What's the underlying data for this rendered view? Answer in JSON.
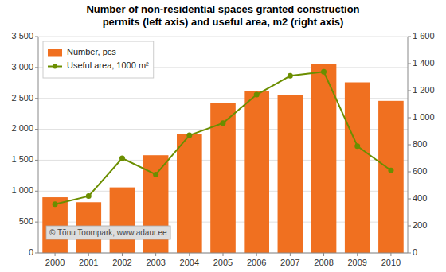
{
  "chart_data": {
    "type": "bar",
    "title": "Number of non-residential spaces granted construction\npermits (left axis) and useful area, m2 (right axis)",
    "categories": [
      "2000",
      "2001",
      "2002",
      "2003",
      "2004",
      "2005",
      "2006",
      "2007",
      "2008",
      "2009",
      "2010"
    ],
    "series": [
      {
        "name": "Number, pcs",
        "type": "bar",
        "color": "#F07020",
        "values": [
          900,
          820,
          1060,
          1580,
          1920,
          2430,
          2620,
          2560,
          3060,
          2760,
          2460
        ]
      },
      {
        "name": "Useful area, 1000 m²",
        "type": "line",
        "axis": "y2",
        "color": "#6B8E00",
        "marker": "circle",
        "values": [
          360,
          420,
          700,
          580,
          870,
          960,
          1170,
          1310,
          1340,
          790,
          610
        ]
      }
    ],
    "ylim": [
      0,
      3500
    ],
    "yticks": [
      0,
      500,
      {
        "value": 1000,
        "label": "1 000"
      },
      {
        "value": 1500,
        "label": "1 500"
      },
      {
        "value": 2000,
        "label": "2 000"
      },
      {
        "value": 2500,
        "label": "2 500"
      },
      {
        "value": 3000,
        "label": "3 000"
      },
      {
        "value": 3500,
        "label": "3 500"
      }
    ],
    "y2lim": [
      0,
      1600
    ],
    "y2ticks": [
      0,
      200,
      400,
      600,
      800,
      {
        "value": 1000,
        "label": "1 000"
      },
      {
        "value": 1200,
        "label": "1 200"
      },
      {
        "value": 1400,
        "label": "1 400"
      },
      {
        "value": 1600,
        "label": "1 600"
      }
    ],
    "grid": true,
    "legend": "upper left",
    "annotations": [
      "© Tõnu Toompark, www.adaur.ee"
    ]
  }
}
